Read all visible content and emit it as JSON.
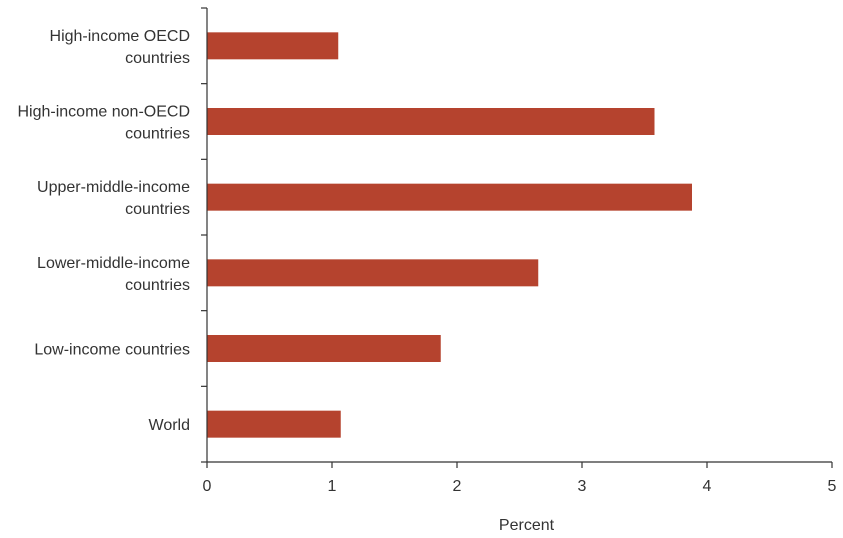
{
  "chart_data": {
    "type": "bar",
    "orientation": "horizontal",
    "categories": [
      [
        "High-income OECD",
        "countries"
      ],
      [
        "High-income non-OECD",
        "countries"
      ],
      [
        "Upper-middle-income",
        "countries"
      ],
      [
        "Lower-middle-income",
        "countries"
      ],
      [
        "Low-income countries"
      ],
      [
        "World"
      ]
    ],
    "values": [
      1.05,
      3.58,
      3.88,
      2.65,
      1.87,
      1.07
    ],
    "xlim": [
      0,
      5
    ],
    "xticks": [
      "0",
      "1",
      "2",
      "3",
      "4",
      "5"
    ],
    "xlabel": "Percent",
    "bar_color": "#b5432e",
    "grid": false,
    "legend": "none"
  }
}
